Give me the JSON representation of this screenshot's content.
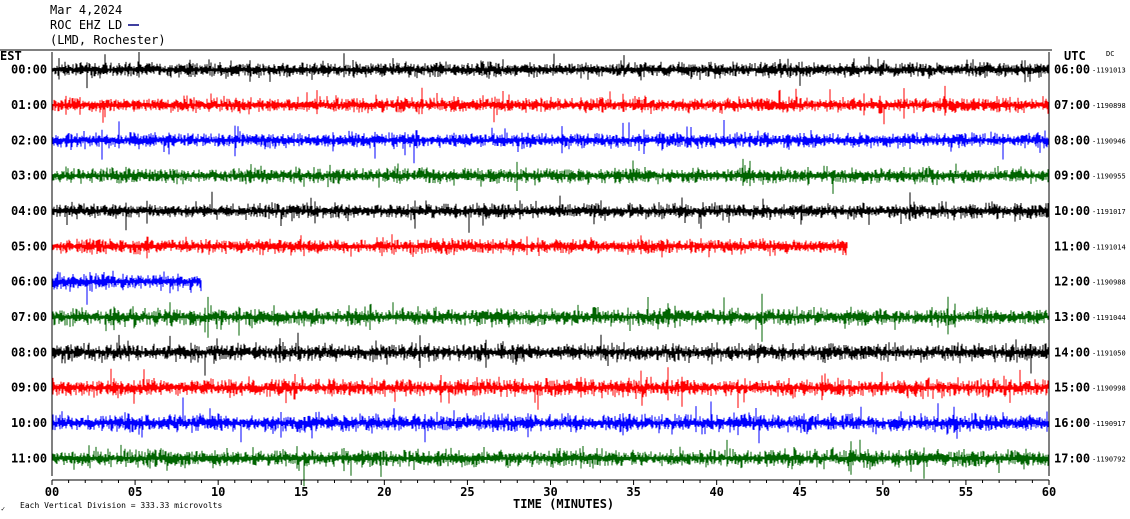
{
  "header": {
    "date": "Mar 4,2024",
    "station": "ROC EHZ LD",
    "location": "(LMD, Rochester)"
  },
  "axis": {
    "left_title": "EST",
    "right_title": "UTC",
    "dc_label": "DC",
    "xlabel": "TIME (MINUTES)",
    "scale_note": "Each Vertical Division = 333.33 microvolts",
    "corner_mark": "✓"
  },
  "chart_data": {
    "type": "line",
    "title": "",
    "xlabel": "TIME (MINUTES)",
    "xlim": [
      0,
      60
    ],
    "x_ticks": [
      "00",
      "05",
      "10",
      "15",
      "20",
      "25",
      "30",
      "35",
      "40",
      "45",
      "50",
      "55",
      "60"
    ],
    "left_ticks": [
      "00:00",
      "01:00",
      "02:00",
      "03:00",
      "04:00",
      "05:00",
      "06:00",
      "07:00",
      "08:00",
      "09:00",
      "10:00",
      "11:00"
    ],
    "right_ticks": [
      "06:00",
      "07:00",
      "08:00",
      "09:00",
      "10:00",
      "11:00",
      "12:00",
      "13:00",
      "14:00",
      "15:00",
      "16:00",
      "17:00"
    ],
    "dc_offsets": [
      "1191013",
      "1190898",
      "1190946",
      "1190955",
      "1191017",
      "1191014",
      "1190988",
      "1191044",
      "1191050",
      "1190998",
      "1190917",
      "1190792"
    ],
    "trace_colors": [
      "#000000",
      "#ff0000",
      "#0000ff",
      "#006400"
    ],
    "rows": 12,
    "minutes_per_row": 60,
    "series": [
      {
        "values_end_min": 60
      },
      {
        "values_end_min": 60
      },
      {
        "values_end_min": 60
      },
      {
        "values_end_min": 60
      },
      {
        "values_end_min": 60
      },
      {
        "values_end_min": 47.9
      },
      {
        "values_end_min": 9
      },
      {
        "values_end_min": 60
      },
      {
        "values_end_min": 60
      },
      {
        "values_end_min": 60
      },
      {
        "values_end_min": 60
      },
      {
        "values_end_min": 60
      }
    ]
  }
}
